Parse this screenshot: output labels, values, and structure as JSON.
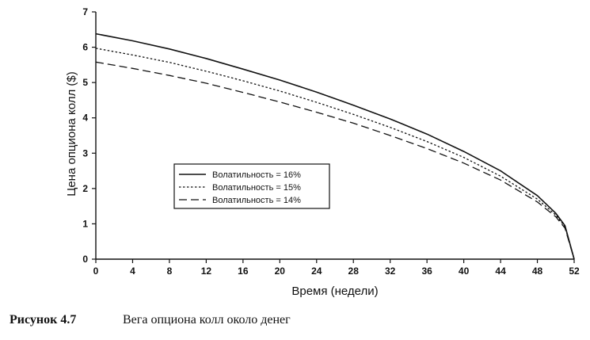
{
  "chart_data": {
    "type": "line",
    "xlabel": "Время (недели)",
    "ylabel": "Цена опциона колл ($)",
    "xlim": [
      0,
      52
    ],
    "ylim": [
      0,
      7
    ],
    "xticks": [
      0,
      4,
      8,
      12,
      16,
      20,
      24,
      28,
      32,
      36,
      40,
      44,
      48,
      52
    ],
    "yticks": [
      0,
      1,
      2,
      3,
      4,
      5,
      6,
      7
    ],
    "grid": false,
    "legend_position": "center-left",
    "series": [
      {
        "name": "Волатильность = 16%",
        "style": "solid",
        "color": "#111111",
        "x": [
          0,
          4,
          8,
          12,
          16,
          20,
          24,
          28,
          32,
          36,
          40,
          44,
          48,
          50,
          51,
          52
        ],
        "y": [
          6.38,
          6.18,
          5.95,
          5.68,
          5.38,
          5.07,
          4.73,
          4.36,
          3.97,
          3.54,
          3.05,
          2.5,
          1.8,
          1.3,
          0.95,
          0.0
        ]
      },
      {
        "name": "Волатильность = 15%",
        "style": "dotted",
        "color": "#111111",
        "x": [
          0,
          4,
          8,
          12,
          16,
          20,
          24,
          28,
          32,
          36,
          40,
          44,
          48,
          50,
          51,
          52
        ],
        "y": [
          5.97,
          5.78,
          5.57,
          5.32,
          5.05,
          4.76,
          4.44,
          4.1,
          3.73,
          3.33,
          2.88,
          2.35,
          1.7,
          1.25,
          0.92,
          0.0
        ]
      },
      {
        "name": "Волатильность = 14%",
        "style": "dashed",
        "color": "#111111",
        "x": [
          0,
          4,
          8,
          12,
          16,
          20,
          24,
          28,
          32,
          36,
          40,
          44,
          48,
          50,
          51,
          52
        ],
        "y": [
          5.58,
          5.4,
          5.2,
          4.98,
          4.72,
          4.45,
          4.16,
          3.85,
          3.5,
          3.13,
          2.72,
          2.24,
          1.62,
          1.2,
          0.88,
          0.0
        ]
      }
    ]
  },
  "caption": {
    "number": "Рисунок 4.7",
    "text": "Вега опциона колл около денег"
  }
}
